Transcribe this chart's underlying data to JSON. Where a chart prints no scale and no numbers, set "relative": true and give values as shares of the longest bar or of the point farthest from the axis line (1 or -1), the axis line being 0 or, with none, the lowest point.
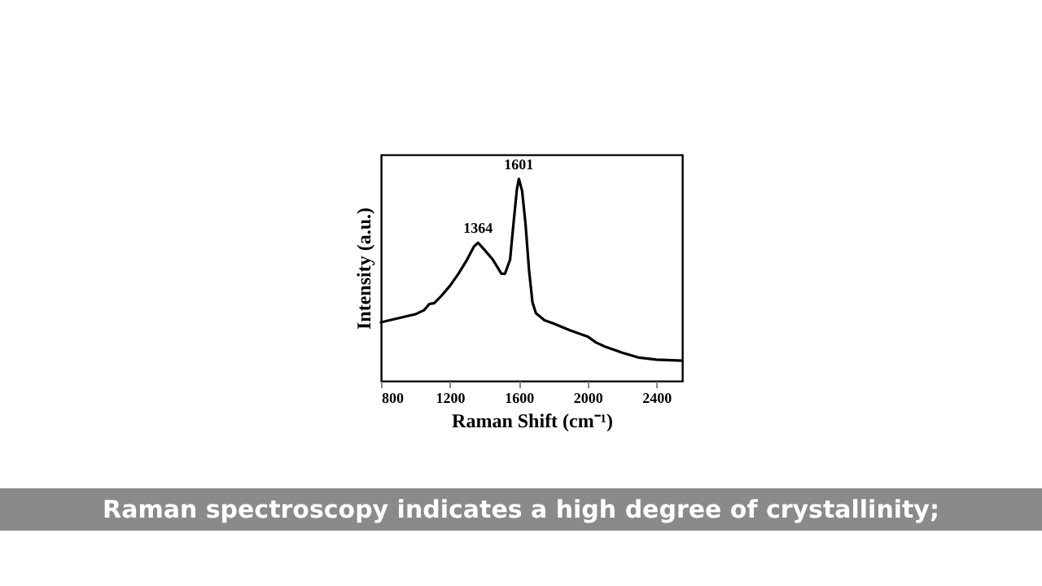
{
  "chart_data": {
    "type": "line",
    "xlabel": "Raman Shift (cm⁻¹)",
    "ylabel": "Intensity (a.u.)",
    "relative": true,
    "xlim": [
      800,
      2550
    ],
    "xticks": [
      800,
      1200,
      1600,
      2000,
      2400
    ],
    "color": "#000000",
    "grid": false,
    "x": [
      800,
      900,
      1000,
      1050,
      1080,
      1110,
      1150,
      1200,
      1250,
      1300,
      1340,
      1364,
      1400,
      1450,
      1500,
      1520,
      1550,
      1570,
      1590,
      1601,
      1620,
      1640,
      1660,
      1680,
      1700,
      1750,
      1800,
      1900,
      1950,
      2000,
      2050,
      2100,
      2200,
      2300,
      2400,
      2550
    ],
    "values": [
      0.29,
      0.31,
      0.33,
      0.35,
      0.38,
      0.385,
      0.42,
      0.47,
      0.53,
      0.6,
      0.665,
      0.684,
      0.65,
      0.6,
      0.53,
      0.53,
      0.6,
      0.78,
      0.95,
      1.0,
      0.94,
      0.775,
      0.55,
      0.39,
      0.335,
      0.3,
      0.285,
      0.25,
      0.235,
      0.22,
      0.19,
      0.17,
      0.14,
      0.115,
      0.105,
      0.1
    ],
    "annotations": [
      {
        "text": "1364",
        "x": 1364,
        "y": 0.684
      },
      {
        "text": "1601",
        "x": 1601,
        "y": 1.0
      },
      "Raman spectroscopy indicates a high degree of crystallinity;"
    ]
  }
}
